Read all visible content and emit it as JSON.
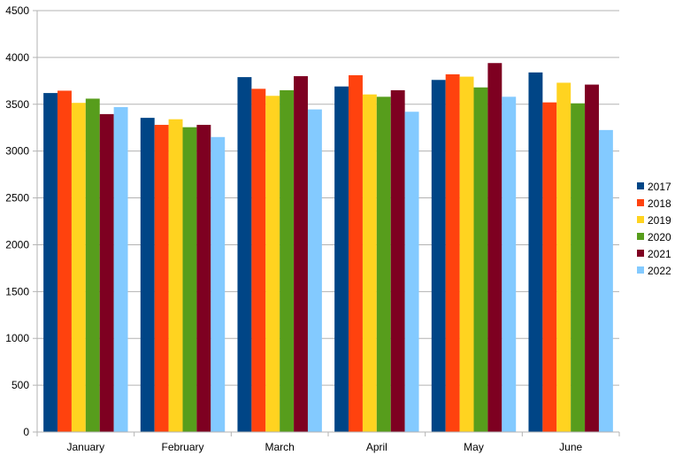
{
  "chart_data": {
    "type": "bar",
    "categories": [
      "January",
      "February",
      "March",
      "April",
      "May",
      "June"
    ],
    "series": [
      {
        "name": "2017",
        "color": "#004586",
        "values": [
          3620,
          3355,
          3790,
          3690,
          3760,
          3840
        ]
      },
      {
        "name": "2018",
        "color": "#ff420e",
        "values": [
          3645,
          3280,
          3665,
          3810,
          3820,
          3520
        ]
      },
      {
        "name": "2019",
        "color": "#ffd320",
        "values": [
          3515,
          3340,
          3590,
          3605,
          3795,
          3730
        ]
      },
      {
        "name": "2020",
        "color": "#579d1c",
        "values": [
          3560,
          3255,
          3650,
          3580,
          3680,
          3510
        ]
      },
      {
        "name": "2021",
        "color": "#7e0021",
        "values": [
          3395,
          3280,
          3800,
          3650,
          3940,
          3710
        ]
      },
      {
        "name": "2022",
        "color": "#83caff",
        "values": [
          3470,
          3150,
          3445,
          3420,
          3580,
          3225
        ]
      }
    ],
    "ylim": [
      0,
      4500
    ],
    "yticks": [
      0,
      500,
      1000,
      1500,
      2000,
      2500,
      3000,
      3500,
      4000,
      4500
    ],
    "grid": true,
    "legend": "right"
  }
}
